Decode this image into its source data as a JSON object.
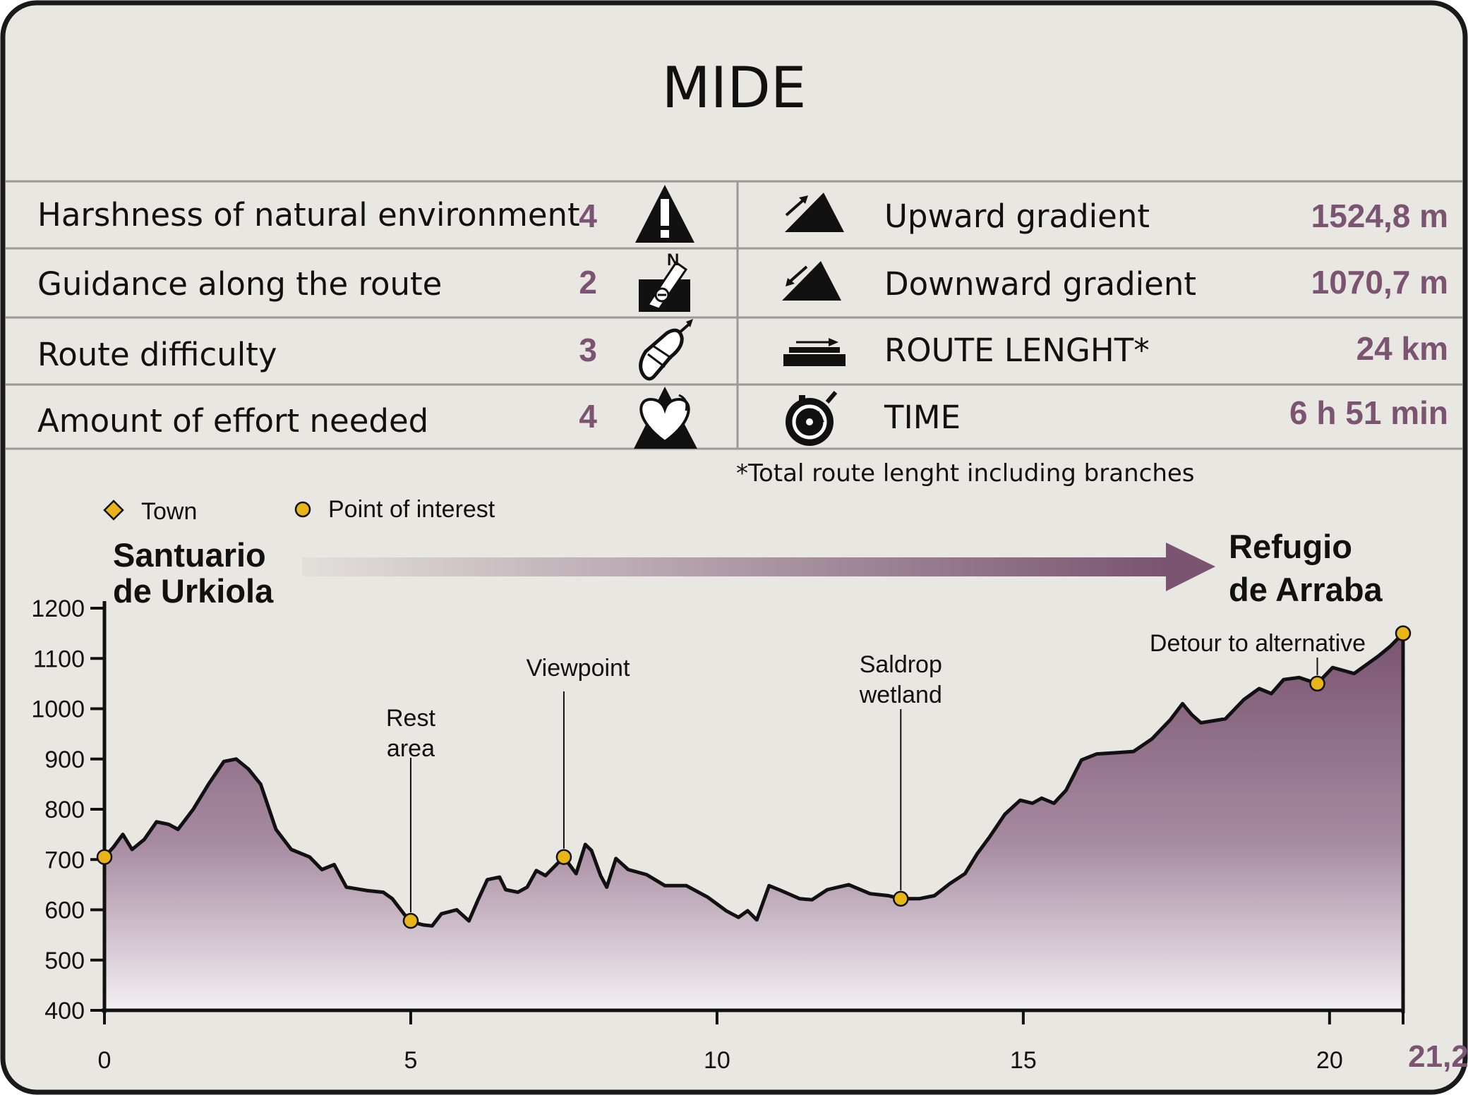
{
  "title": "MIDE",
  "colors": {
    "background": "#e8e7e1",
    "border": "#1a1a1a",
    "divider": "#9a9a96",
    "accent": "#7a5470",
    "profile_fill_top": "#7a5470",
    "profile_fill_bottom": "#f4f0f2",
    "poi": "#e8b417"
  },
  "mide": {
    "rows": [
      {
        "label": "Harshness of natural environment",
        "value": "4",
        "icon": "warning-triangle-icon"
      },
      {
        "label": "Guidance along the route",
        "value": "2",
        "icon": "compass-direction-icon"
      },
      {
        "label": "Route difficulty",
        "value": "3",
        "icon": "footprint-icon"
      },
      {
        "label": "Amount of effort needed",
        "value": "4",
        "icon": "heart-mountain-icon"
      }
    ],
    "stats": [
      {
        "label": "Upward gradient",
        "value": "1524,8 m",
        "icon": "upward-gradient-icon"
      },
      {
        "label": "Downward gradient",
        "value": "1070,7 m",
        "icon": "downward-gradient-icon"
      },
      {
        "label": "ROUTE LENGHT*",
        "value": "24 km",
        "icon": "route-length-icon"
      },
      {
        "label": "TIME",
        "value": "6 h 51 min",
        "icon": "stopwatch-icon"
      }
    ],
    "footnote": "*Total route lenght including branches"
  },
  "legend": {
    "town": "Town",
    "poi": "Point of interest"
  },
  "start_label": [
    "Santuario",
    "de Urkiola"
  ],
  "end_label": [
    "Refugio",
    "de Arraba"
  ],
  "chart_data": {
    "type": "area",
    "xlim": [
      0,
      21.2
    ],
    "ylim": [
      400,
      1200
    ],
    "x_ticks": [
      "0",
      "5",
      "10",
      "15",
      "20",
      "21,2"
    ],
    "x_tick_values": [
      0,
      5,
      10,
      15,
      20,
      21.2
    ],
    "y_ticks": [
      "400",
      "500",
      "600",
      "700",
      "800",
      "900",
      "1000",
      "1100",
      "1200"
    ],
    "y_tick_values": [
      400,
      500,
      600,
      700,
      800,
      900,
      1000,
      1100,
      1200
    ],
    "profile": [
      [
        0,
        705
      ],
      [
        0.15,
        725
      ],
      [
        0.3,
        750
      ],
      [
        0.45,
        720
      ],
      [
        0.65,
        740
      ],
      [
        0.85,
        775
      ],
      [
        1.05,
        770
      ],
      [
        1.2,
        760
      ],
      [
        1.45,
        800
      ],
      [
        1.7,
        850
      ],
      [
        1.95,
        895
      ],
      [
        2.15,
        900
      ],
      [
        2.35,
        880
      ],
      [
        2.55,
        850
      ],
      [
        2.8,
        760
      ],
      [
        3.05,
        720
      ],
      [
        3.35,
        705
      ],
      [
        3.55,
        680
      ],
      [
        3.75,
        690
      ],
      [
        3.95,
        645
      ],
      [
        4.3,
        638
      ],
      [
        4.55,
        635
      ],
      [
        4.7,
        622
      ],
      [
        4.9,
        590
      ],
      [
        5.05,
        575
      ],
      [
        5.2,
        570
      ],
      [
        5.35,
        568
      ],
      [
        5.5,
        592
      ],
      [
        5.75,
        600
      ],
      [
        5.95,
        578
      ],
      [
        6.1,
        620
      ],
      [
        6.25,
        660
      ],
      [
        6.45,
        665
      ],
      [
        6.55,
        640
      ],
      [
        6.75,
        635
      ],
      [
        6.9,
        645
      ],
      [
        7.05,
        678
      ],
      [
        7.2,
        668
      ],
      [
        7.5,
        705
      ],
      [
        7.7,
        672
      ],
      [
        7.85,
        730
      ],
      [
        7.95,
        718
      ],
      [
        8.1,
        668
      ],
      [
        8.2,
        645
      ],
      [
        8.35,
        702
      ],
      [
        8.55,
        680
      ],
      [
        8.85,
        670
      ],
      [
        9.15,
        648
      ],
      [
        9.5,
        648
      ],
      [
        9.85,
        625
      ],
      [
        10.15,
        598
      ],
      [
        10.35,
        585
      ],
      [
        10.5,
        598
      ],
      [
        10.65,
        580
      ],
      [
        10.85,
        648
      ],
      [
        11.05,
        638
      ],
      [
        11.35,
        622
      ],
      [
        11.55,
        620
      ],
      [
        11.8,
        640
      ],
      [
        12.15,
        650
      ],
      [
        12.5,
        632
      ],
      [
        12.8,
        628
      ],
      [
        13.0,
        622
      ],
      [
        13.3,
        622
      ],
      [
        13.55,
        628
      ],
      [
        13.8,
        652
      ],
      [
        14.05,
        672
      ],
      [
        14.25,
        712
      ],
      [
        14.45,
        745
      ],
      [
        14.7,
        790
      ],
      [
        14.95,
        818
      ],
      [
        15.15,
        812
      ],
      [
        15.3,
        822
      ],
      [
        15.5,
        812
      ],
      [
        15.7,
        838
      ],
      [
        15.95,
        898
      ],
      [
        16.2,
        910
      ],
      [
        16.45,
        912
      ],
      [
        16.8,
        915
      ],
      [
        17.1,
        940
      ],
      [
        17.4,
        978
      ],
      [
        17.6,
        1010
      ],
      [
        17.75,
        988
      ],
      [
        17.9,
        972
      ],
      [
        18.3,
        980
      ],
      [
        18.6,
        1018
      ],
      [
        18.85,
        1040
      ],
      [
        19.05,
        1030
      ],
      [
        19.25,
        1058
      ],
      [
        19.5,
        1062
      ],
      [
        19.8,
        1050
      ],
      [
        20.05,
        1082
      ],
      [
        20.4,
        1070
      ],
      [
        20.8,
        1105
      ],
      [
        21.0,
        1125
      ],
      [
        21.2,
        1150
      ]
    ],
    "points_of_interest": [
      {
        "x": 0,
        "y": 705,
        "label": ""
      },
      {
        "x": 5.0,
        "y": 578,
        "label": "Rest area"
      },
      {
        "x": 7.5,
        "y": 705,
        "label": "Viewpoint"
      },
      {
        "x": 13.0,
        "y": 622,
        "label": "Saldrop wetland"
      },
      {
        "x": 19.8,
        "y": 1050,
        "label": "Detour to alternative"
      },
      {
        "x": 21.2,
        "y": 1150,
        "label": ""
      }
    ],
    "poi_labels": {
      "rest_area": [
        "Rest",
        "area"
      ],
      "viewpoint": [
        "Viewpoint"
      ],
      "saldrop": [
        "Saldrop",
        "wetland"
      ],
      "detour": [
        "Detour to alternative"
      ]
    },
    "grid": false,
    "legend_placement": "top-left"
  }
}
